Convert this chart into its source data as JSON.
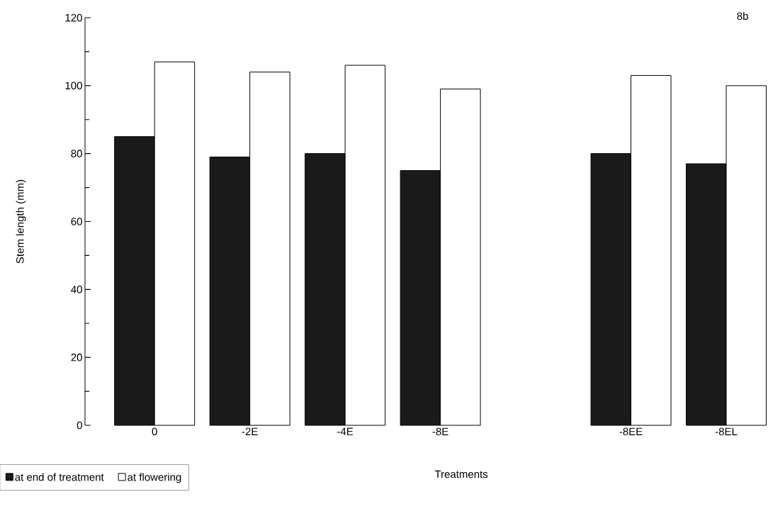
{
  "chart_data": {
    "type": "bar",
    "xlabel": "Treatments",
    "ylabel": "Stem length (mm)",
    "annotations": [
      "8b"
    ],
    "categories": [
      "0",
      "-2E",
      "-4E",
      "-8E",
      null,
      "-8EE",
      "-8EL"
    ],
    "series": [
      {
        "name": "at end of treatment",
        "color": "#1a1a1a",
        "values": [
          85,
          79,
          80,
          75,
          null,
          80,
          77
        ]
      },
      {
        "name": "at flowering",
        "color": "#ffffff",
        "values": [
          107,
          104,
          106,
          99,
          null,
          103,
          100
        ]
      }
    ],
    "ylim": [
      0,
      120
    ],
    "yticks": [
      0,
      20,
      40,
      60,
      80,
      100,
      120
    ],
    "legend": "bottom left",
    "grid": false
  }
}
